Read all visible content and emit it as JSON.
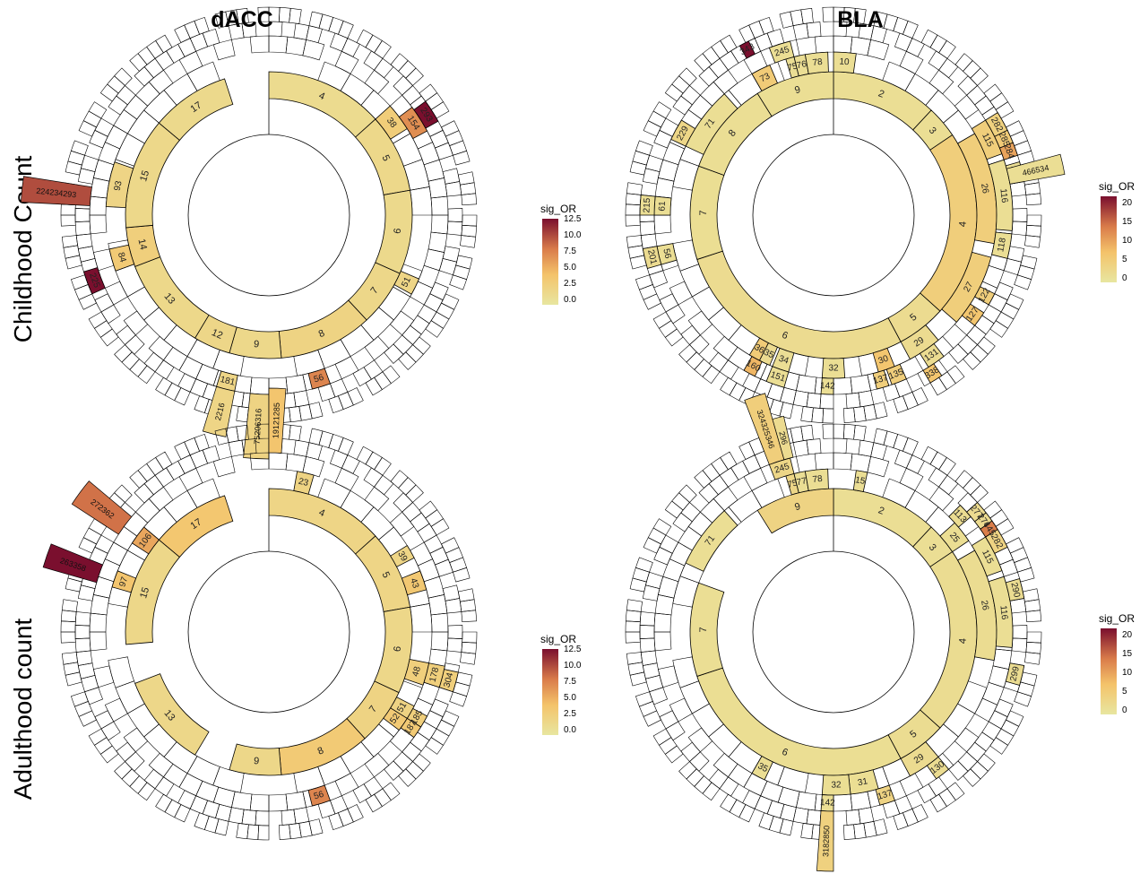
{
  "columns": [
    "dACC",
    "BLA"
  ],
  "rows": [
    "Childhood Count",
    "Adulthood count"
  ],
  "color_scale": {
    "low": "#e8e6a0",
    "mid": "#f4c36a",
    "high2": "#d97b4a",
    "high": "#7a0f2e"
  },
  "chart_data": [
    {
      "type": "sunburst",
      "region": "dACC",
      "measure": "Childhood Count",
      "legend": {
        "title": "sig_OR",
        "ticks": [
          "12.5",
          "10.0",
          "7.5",
          "5.0",
          "2.5",
          "0.0"
        ],
        "max": 12.5
      },
      "ring1": [
        {
          "label": "4",
          "start": 0,
          "end": 48,
          "v": 1.2
        },
        {
          "label": "5",
          "start": 48,
          "end": 80,
          "v": 1.5
        },
        {
          "label": "6",
          "start": 80,
          "end": 114,
          "v": 1.4
        },
        {
          "label": "7",
          "start": 114,
          "end": 137,
          "v": 1.6
        },
        {
          "label": "8",
          "start": 137,
          "end": 175,
          "v": 2.0
        },
        {
          "label": "9",
          "start": 175,
          "end": 196,
          "v": 1.5
        },
        {
          "label": "12",
          "start": 196,
          "end": 211,
          "v": 1.7
        },
        {
          "label": "13",
          "start": 211,
          "end": 249,
          "v": 1.5
        },
        {
          "label": "14",
          "start": 249,
          "end": 265,
          "v": 2.5
        },
        {
          "label": "15",
          "start": 265,
          "end": 310,
          "v": 1.5
        },
        {
          "label": "17",
          "start": 310,
          "end": 342,
          "v": 1.4
        }
      ],
      "ring2": [
        {
          "label": "38",
          "start": 48,
          "end": 58,
          "v": 2.7
        },
        {
          "label": "51",
          "start": 113,
          "end": 119,
          "v": 1.8
        },
        {
          "label": "93",
          "start": 273,
          "end": 289,
          "v": 1.9
        },
        {
          "label": "84",
          "start": 250,
          "end": 258,
          "v": 3.0
        }
      ],
      "ring3": [
        {
          "label": "154",
          "start": 53,
          "end": 62,
          "v": 7.0
        },
        {
          "label": "56",
          "start": 160,
          "end": 166,
          "v": 7.5
        },
        {
          "label": "181",
          "start": 191,
          "end": 197,
          "v": 1.8
        }
      ],
      "ring4": [
        {
          "label": "293",
          "start": 54,
          "end": 61,
          "v": 12.5
        },
        {
          "label": "225",
          "start": 246,
          "end": 253,
          "v": 12.5
        }
      ],
      "spokes": [
        {
          "text": "224234293",
          "start": 273,
          "end": 279,
          "v": 10.0
        },
        {
          "text": "2216",
          "start": 191,
          "end": 197,
          "v": 1.8
        },
        {
          "text": "75206316",
          "start": 180,
          "end": 186,
          "v": 2.0
        }
      ]
    },
    {
      "type": "sunburst",
      "region": "BLA",
      "measure": "Childhood Count",
      "legend": {
        "title": "sig_OR",
        "ticks": [
          "20",
          "15",
          "10",
          "5",
          "0"
        ],
        "max": 22
      },
      "ring1": [
        {
          "label": "2",
          "start": 0,
          "end": 43,
          "v": 1.5
        },
        {
          "label": "3",
          "start": 43,
          "end": 56,
          "v": 1.5
        },
        {
          "label": "4",
          "start": 56,
          "end": 132,
          "v": 4.5
        },
        {
          "label": "5",
          "start": 132,
          "end": 152,
          "v": 2.0
        },
        {
          "label": "6",
          "start": 152,
          "end": 252,
          "v": 2.0
        },
        {
          "label": "7",
          "start": 252,
          "end": 290,
          "v": 1.6
        },
        {
          "label": "8",
          "start": 290,
          "end": 328,
          "v": 1.5
        },
        {
          "label": "9",
          "start": 328,
          "end": 360,
          "v": 1.5
        }
      ],
      "ring2": [
        {
          "label": "10",
          "start": 0,
          "end": 8,
          "v": 1.5
        },
        {
          "label": "26",
          "start": 60,
          "end": 100,
          "v": 4.5
        },
        {
          "label": "27",
          "start": 105,
          "end": 131,
          "v": 4.5
        },
        {
          "label": "29",
          "start": 140,
          "end": 152,
          "v": 2.0
        },
        {
          "label": "30",
          "start": 158,
          "end": 164,
          "v": 6.0
        },
        {
          "label": "32",
          "start": 176,
          "end": 184,
          "v": 1.5
        },
        {
          "label": "34",
          "start": 196,
          "end": 202,
          "v": 1.5
        },
        {
          "label": "35",
          "start": 203,
          "end": 207,
          "v": 2.0
        },
        {
          "label": "36",
          "start": 207,
          "end": 211,
          "v": 5.0
        },
        {
          "label": "71",
          "start": 295,
          "end": 318,
          "v": 1.5
        },
        {
          "label": "73",
          "start": 330,
          "end": 337,
          "v": 5.0
        },
        {
          "label": "75",
          "start": 343,
          "end": 346,
          "v": 1.5
        },
        {
          "label": "76",
          "start": 346,
          "end": 350,
          "v": 1.5
        },
        {
          "label": "78",
          "start": 350,
          "end": 358,
          "v": 1.5
        }
      ],
      "ring3": [
        {
          "label": "115",
          "start": 58,
          "end": 70,
          "v": 4.5
        },
        {
          "label": "116",
          "start": 72,
          "end": 95,
          "v": 1.5
        },
        {
          "label": "118",
          "start": 96,
          "end": 104,
          "v": 1.5
        },
        {
          "label": "122",
          "start": 116,
          "end": 120,
          "v": 4.5
        },
        {
          "label": "127",
          "start": 123,
          "end": 128,
          "v": 6.0
        },
        {
          "label": "131",
          "start": 142,
          "end": 148,
          "v": 1.8
        },
        {
          "label": "135",
          "start": 156,
          "end": 161,
          "v": 4.5
        },
        {
          "label": "137",
          "start": 162,
          "end": 166,
          "v": 4.5
        },
        {
          "label": "142",
          "start": 180,
          "end": 184,
          "v": 1.5
        },
        {
          "label": "151",
          "start": 196,
          "end": 202,
          "v": 1.5
        },
        {
          "label": "160",
          "start": 206,
          "end": 210,
          "v": 8.0
        },
        {
          "label": "229",
          "start": 295,
          "end": 302,
          "v": 3.0
        },
        {
          "label": "61",
          "start": 270,
          "end": 276,
          "v": 1.5
        },
        {
          "label": "56",
          "start": 254,
          "end": 260,
          "v": 1.5
        },
        {
          "label": "245",
          "start": 339,
          "end": 346,
          "v": 1.5
        }
      ],
      "ring4": [
        {
          "label": "282",
          "start": 58,
          "end": 64,
          "v": 4.0
        },
        {
          "label": "285",
          "start": 64,
          "end": 68,
          "v": 5.0
        },
        {
          "label": "284",
          "start": 68,
          "end": 72,
          "v": 10.0
        },
        {
          "label": "290",
          "start": 74,
          "end": 80,
          "v": 1.5
        },
        {
          "label": "215",
          "start": 270,
          "end": 276,
          "v": 1.5
        },
        {
          "label": "201",
          "start": 254,
          "end": 260,
          "v": 2.0
        },
        {
          "label": "338",
          "start": 146,
          "end": 150,
          "v": 6.0
        },
        {
          "label": "343",
          "start": 331,
          "end": 334,
          "v": 22.0
        }
      ],
      "spokes": [
        {
          "text": "466534",
          "start": 75,
          "end": 80,
          "v": 1.5
        }
      ]
    },
    {
      "type": "sunburst",
      "region": "dACC",
      "measure": "Adulthood count",
      "legend": {
        "title": "sig_OR",
        "ticks": [
          "12.5",
          "10.0",
          "7.5",
          "5.0",
          "2.5",
          "0.0"
        ],
        "max": 12.5
      },
      "ring1": [
        {
          "label": "4",
          "start": 0,
          "end": 48,
          "v": 1.8
        },
        {
          "label": "5",
          "start": 48,
          "end": 80,
          "v": 1.8
        },
        {
          "label": "6",
          "start": 80,
          "end": 115,
          "v": 1.6
        },
        {
          "label": "7",
          "start": 115,
          "end": 138,
          "v": 2.0
        },
        {
          "label": "8",
          "start": 138,
          "end": 175,
          "v": 3.0
        },
        {
          "label": "9",
          "start": 175,
          "end": 196,
          "v": 1.6
        },
        {
          "label": "13",
          "start": 211,
          "end": 249,
          "v": 1.6
        },
        {
          "label": "15",
          "start": 265,
          "end": 310,
          "v": 1.6
        },
        {
          "label": "17",
          "start": 310,
          "end": 342,
          "v": 3.3
        }
      ],
      "ring2": [
        {
          "label": "23",
          "start": 10,
          "end": 16,
          "v": 2.0
        },
        {
          "label": "39",
          "start": 58,
          "end": 63,
          "v": 1.8
        },
        {
          "label": "43",
          "start": 68,
          "end": 75,
          "v": 3.2
        },
        {
          "label": "48",
          "start": 101,
          "end": 109,
          "v": 2.5
        },
        {
          "label": "51",
          "start": 117,
          "end": 122,
          "v": 2.0
        },
        {
          "label": "52",
          "start": 122,
          "end": 127,
          "v": 3.0
        },
        {
          "label": "97",
          "start": 286,
          "end": 292,
          "v": 3.5
        },
        {
          "label": "106",
          "start": 303,
          "end": 310,
          "v": 5.5
        }
      ],
      "ring3": [
        {
          "label": "178",
          "start": 101,
          "end": 108,
          "v": 2.5
        },
        {
          "label": "185",
          "start": 118,
          "end": 122,
          "v": 2.5
        },
        {
          "label": "187",
          "start": 122,
          "end": 126,
          "v": 3.0
        },
        {
          "label": "56",
          "start": 160,
          "end": 166,
          "v": 7.5
        }
      ],
      "ring4": [
        {
          "label": "304",
          "start": 102,
          "end": 108,
          "v": 2.5
        }
      ],
      "spokes": [
        {
          "text": "19121285",
          "start": 0,
          "end": 4,
          "v": 3.5
        },
        {
          "text": "263358",
          "start": 286,
          "end": 292,
          "v": 12.5
        },
        {
          "text": "272362",
          "start": 303,
          "end": 310,
          "v": 8.5
        }
      ]
    },
    {
      "type": "sunburst",
      "region": "BLA",
      "measure": "Adulthood count",
      "legend": {
        "title": "sig_OR",
        "ticks": [
          "20",
          "15",
          "10",
          "5",
          "0"
        ],
        "max": 22
      },
      "ring1": [
        {
          "label": "2",
          "start": 0,
          "end": 43,
          "v": 1.5
        },
        {
          "label": "3",
          "start": 43,
          "end": 56,
          "v": 1.5
        },
        {
          "label": "4",
          "start": 56,
          "end": 132,
          "v": 1.8
        },
        {
          "label": "5",
          "start": 132,
          "end": 152,
          "v": 1.8
        },
        {
          "label": "6",
          "start": 152,
          "end": 252,
          "v": 1.6
        },
        {
          "label": "7",
          "start": 252,
          "end": 290,
          "v": 1.5
        },
        {
          "label": "9",
          "start": 328,
          "end": 360,
          "v": 3.5
        }
      ],
      "ring2": [
        {
          "label": "15",
          "start": 8,
          "end": 12,
          "v": 1.5
        },
        {
          "label": "25",
          "start": 48,
          "end": 56,
          "v": 1.6
        },
        {
          "label": "26",
          "start": 60,
          "end": 100,
          "v": 1.8
        },
        {
          "label": "29",
          "start": 140,
          "end": 152,
          "v": 2.0
        },
        {
          "label": "31",
          "start": 164,
          "end": 174,
          "v": 1.6
        },
        {
          "label": "32",
          "start": 174,
          "end": 184,
          "v": 1.6
        },
        {
          "label": "35",
          "start": 205,
          "end": 210,
          "v": 1.6
        },
        {
          "label": "71",
          "start": 295,
          "end": 318,
          "v": 1.5
        },
        {
          "label": "75",
          "start": 343,
          "end": 346,
          "v": 3.0
        },
        {
          "label": "77",
          "start": 346,
          "end": 350,
          "v": 1.5
        },
        {
          "label": "78",
          "start": 350,
          "end": 358,
          "v": 1.5
        }
      ],
      "ring3": [
        {
          "label": "113",
          "start": 45,
          "end": 50,
          "v": 1.8
        },
        {
          "label": "115",
          "start": 58,
          "end": 70,
          "v": 1.5
        },
        {
          "label": "116",
          "start": 72,
          "end": 95,
          "v": 1.5
        },
        {
          "label": "130",
          "start": 140,
          "end": 145,
          "v": 1.8
        },
        {
          "label": "137",
          "start": 160,
          "end": 165,
          "v": 3.5
        },
        {
          "label": "142",
          "start": 180,
          "end": 184,
          "v": 1.6
        },
        {
          "label": "245",
          "start": 339,
          "end": 346,
          "v": 3.0
        }
      ],
      "ring4": [
        {
          "label": "277",
          "start": 48,
          "end": 52,
          "v": 2.0
        },
        {
          "label": "276",
          "start": 52,
          "end": 55,
          "v": 2.0
        },
        {
          "label": "282",
          "start": 58,
          "end": 64,
          "v": 3.5
        },
        {
          "label": "290",
          "start": 74,
          "end": 80,
          "v": 1.8
        },
        {
          "label": "299",
          "start": 100,
          "end": 106,
          "v": 1.8
        },
        {
          "label": "445",
          "start": 55,
          "end": 58,
          "v": 14.0
        }
      ],
      "spokes": [
        {
          "text": "3182850",
          "start": 180,
          "end": 184,
          "v": 4.0
        },
        {
          "text": "324325346",
          "start": 339,
          "end": 344,
          "v": 4.5
        },
        {
          "text": "296",
          "start": 344,
          "end": 347,
          "v": 2.0
        }
      ]
    }
  ]
}
